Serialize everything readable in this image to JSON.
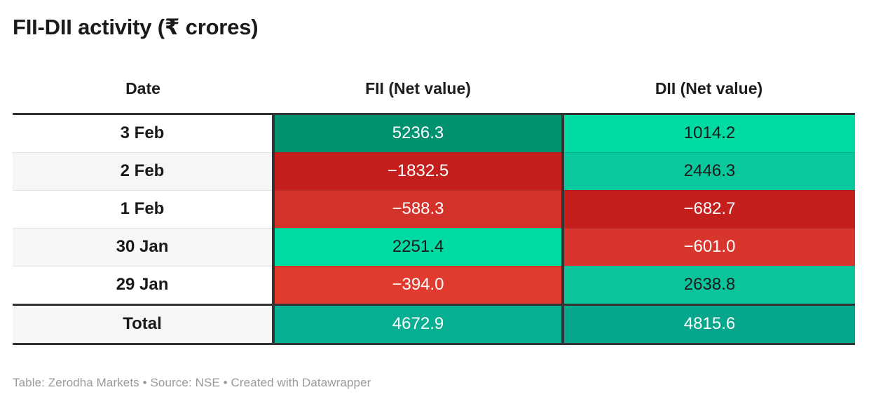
{
  "title": "FII-DII activity (₹ crores)",
  "table": {
    "columns": [
      "Date",
      "FII (Net value)",
      "DII (Net value)"
    ],
    "rows": [
      {
        "date": "3 Feb",
        "fii": {
          "text": "5236.3",
          "bg": "#00916F",
          "fg": "#ffffff"
        },
        "dii": {
          "text": "1014.2",
          "bg": "#00DBA3",
          "fg": "#1a1a1a"
        }
      },
      {
        "date": "2 Feb",
        "fii": {
          "text": "−1832.5",
          "bg": "#C41E1D",
          "fg": "#ffffff"
        },
        "dii": {
          "text": "2446.3",
          "bg": "#0AC89E",
          "fg": "#1a1a1a"
        }
      },
      {
        "date": "1 Feb",
        "fii": {
          "text": "−588.3",
          "bg": "#D4332B",
          "fg": "#ffffff"
        },
        "dii": {
          "text": "−682.7",
          "bg": "#C41E1D",
          "fg": "#ffffff"
        }
      },
      {
        "date": "30 Jan",
        "fii": {
          "text": "2251.4",
          "bg": "#00DBA4",
          "fg": "#1a1a1a"
        },
        "dii": {
          "text": "−601.0",
          "bg": "#D8352C",
          "fg": "#ffffff"
        }
      },
      {
        "date": "29 Jan",
        "fii": {
          "text": "−394.0",
          "bg": "#E13B2F",
          "fg": "#ffffff"
        },
        "dii": {
          "text": "2638.8",
          "bg": "#0AC59C",
          "fg": "#1a1a1a"
        }
      }
    ],
    "total_row": {
      "date": "Total",
      "fii": {
        "text": "4672.9",
        "bg": "#07AF92",
        "fg": "#ffffff"
      },
      "dii": {
        "text": "4815.6",
        "bg": "#05A68B",
        "fg": "#ffffff"
      }
    }
  },
  "footer": "Table: Zerodha Markets • Source: NSE • Created with Datawrapper",
  "colors": {
    "border_dark": "#333333",
    "row_separator": "#e4e4e4",
    "zebra_bg": "#f6f6f6",
    "footer_text": "#9a9a9a",
    "title_text": "#1a1a1a"
  },
  "chart_data": {
    "type": "table",
    "title": "FII-DII activity (₹ crores)",
    "columns": [
      "Date",
      "FII (Net value)",
      "DII (Net value)"
    ],
    "categories": [
      "3 Feb",
      "2 Feb",
      "1 Feb",
      "30 Jan",
      "29 Jan",
      "Total"
    ],
    "series": [
      {
        "name": "FII (Net value)",
        "values": [
          5236.3,
          -1832.5,
          -588.3,
          2251.4,
          -394.0,
          4672.9
        ]
      },
      {
        "name": "DII (Net value)",
        "values": [
          1014.2,
          2446.3,
          -682.7,
          -601.0,
          2638.8,
          4815.6
        ]
      }
    ],
    "layout_hints": {
      "heatmap": "diverging scale: negative values red (darker = more negative), positive values green (darker = larger)",
      "units": "₹ crores"
    }
  }
}
